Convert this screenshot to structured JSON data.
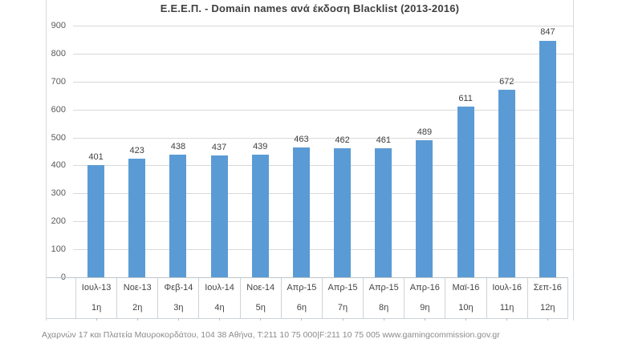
{
  "chart_data": {
    "type": "bar",
    "title": "Ε.Ε.Ε.Π. - Domain names ανά έκδοση Blacklist (2013-2016)",
    "categories": [
      "Ιουλ-13",
      "Νοε-13",
      "Φεβ-14",
      "Ιουλ-14",
      "Νοε-14",
      "Απρ-15",
      "Απρ-15",
      "Απρ-15",
      "Απρ-16",
      "Μαϊ-16",
      "Ιουλ-16",
      "Σεπ-16"
    ],
    "category_editions": [
      "1η",
      "2η",
      "3η",
      "4η",
      "5η",
      "6η",
      "7η",
      "8η",
      "9η",
      "10η",
      "11η",
      "12η"
    ],
    "values": [
      401,
      423,
      438,
      437,
      439,
      463,
      462,
      461,
      489,
      611,
      672,
      847
    ],
    "ylim": [
      0,
      900
    ],
    "yticks": [
      0,
      100,
      200,
      300,
      400,
      500,
      600,
      700,
      800,
      900
    ],
    "xlabel": "",
    "ylabel": "",
    "grid": true,
    "legend": "none",
    "data_labels": true
  },
  "colors": {
    "bar": "#5b9bd5",
    "gridline": "#d9d9d9",
    "axis_line": "#bfc5cb",
    "table_border": "#cdd3d9",
    "title_text": "#3f3f3f",
    "value_text": "#404040",
    "ytick_text": "#595959",
    "category_text": "#444444",
    "footer_text": "#8a8a8a"
  },
  "footer": {
    "text": "Αχαρνών 17 και Πλατεία Μαυροκορδάτου, 104 38 Αθήνα, T:211 10 75 000|F:211 10 75 005 www.gamingcommission.gov.gr"
  }
}
